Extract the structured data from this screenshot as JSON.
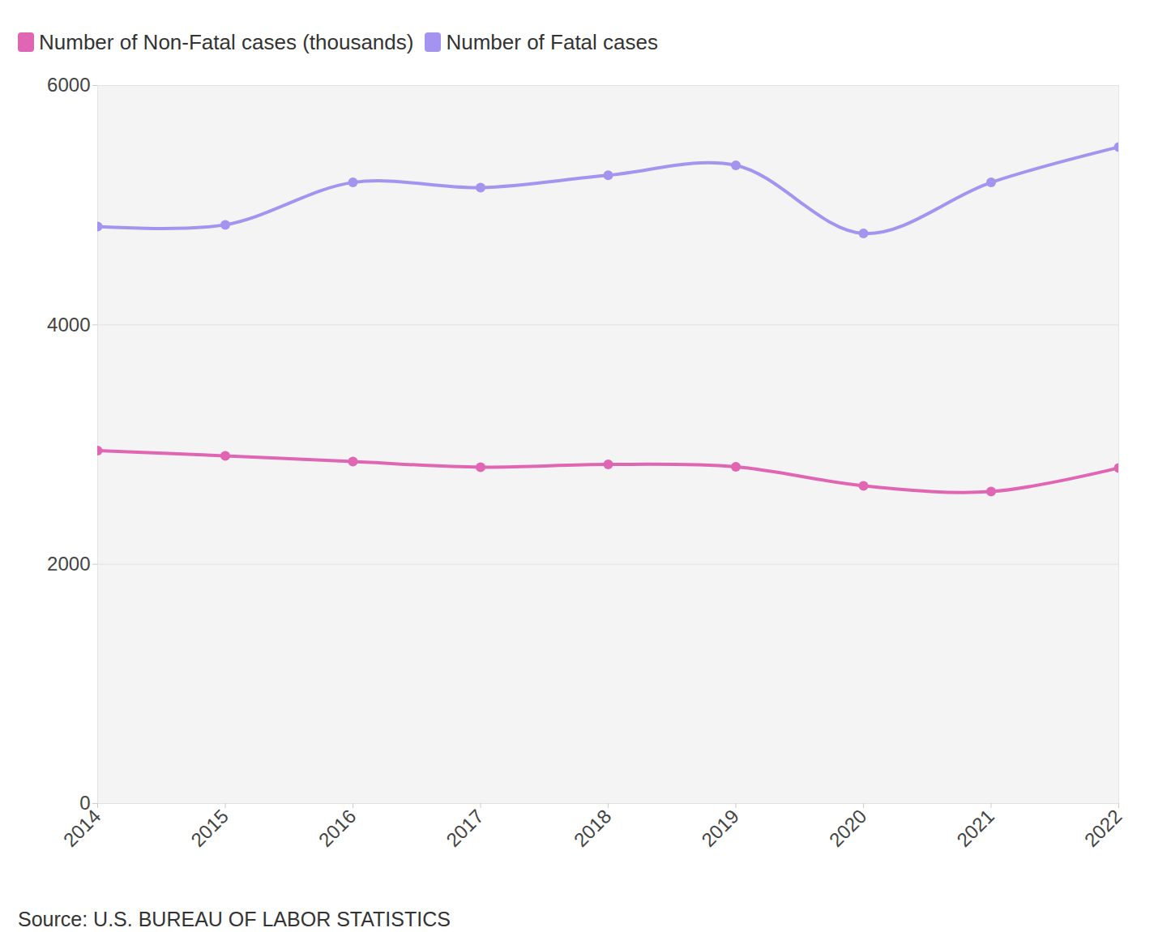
{
  "chart_data": {
    "type": "line",
    "caption": "Source: U.S. BUREAU OF LABOR STATISTICS",
    "x": [
      2014,
      2015,
      2016,
      2017,
      2018,
      2019,
      2020,
      2021,
      2022
    ],
    "series": [
      {
        "name": "Number of Non-Fatal cases (thousands)",
        "color": "#e066b4",
        "marker": "circle",
        "line_style": "solid",
        "values": [
          2950,
          2905,
          2857,
          2811,
          2834,
          2814,
          2655,
          2607,
          2804
        ]
      },
      {
        "name": "Number of Fatal cases",
        "color": "#a593f0",
        "marker": "circle",
        "line_style": "solid",
        "values": [
          4821,
          4836,
          5190,
          5147,
          5250,
          5333,
          4764,
          5190,
          5486
        ]
      }
    ],
    "xlim": [
      2014,
      2022
    ],
    "xticks": [
      2014,
      2015,
      2016,
      2017,
      2018,
      2019,
      2020,
      2021,
      2022
    ],
    "ylim": [
      0,
      6000
    ],
    "yticks": [
      0,
      2000,
      4000,
      6000
    ],
    "grid": true,
    "legend": "top-left"
  }
}
